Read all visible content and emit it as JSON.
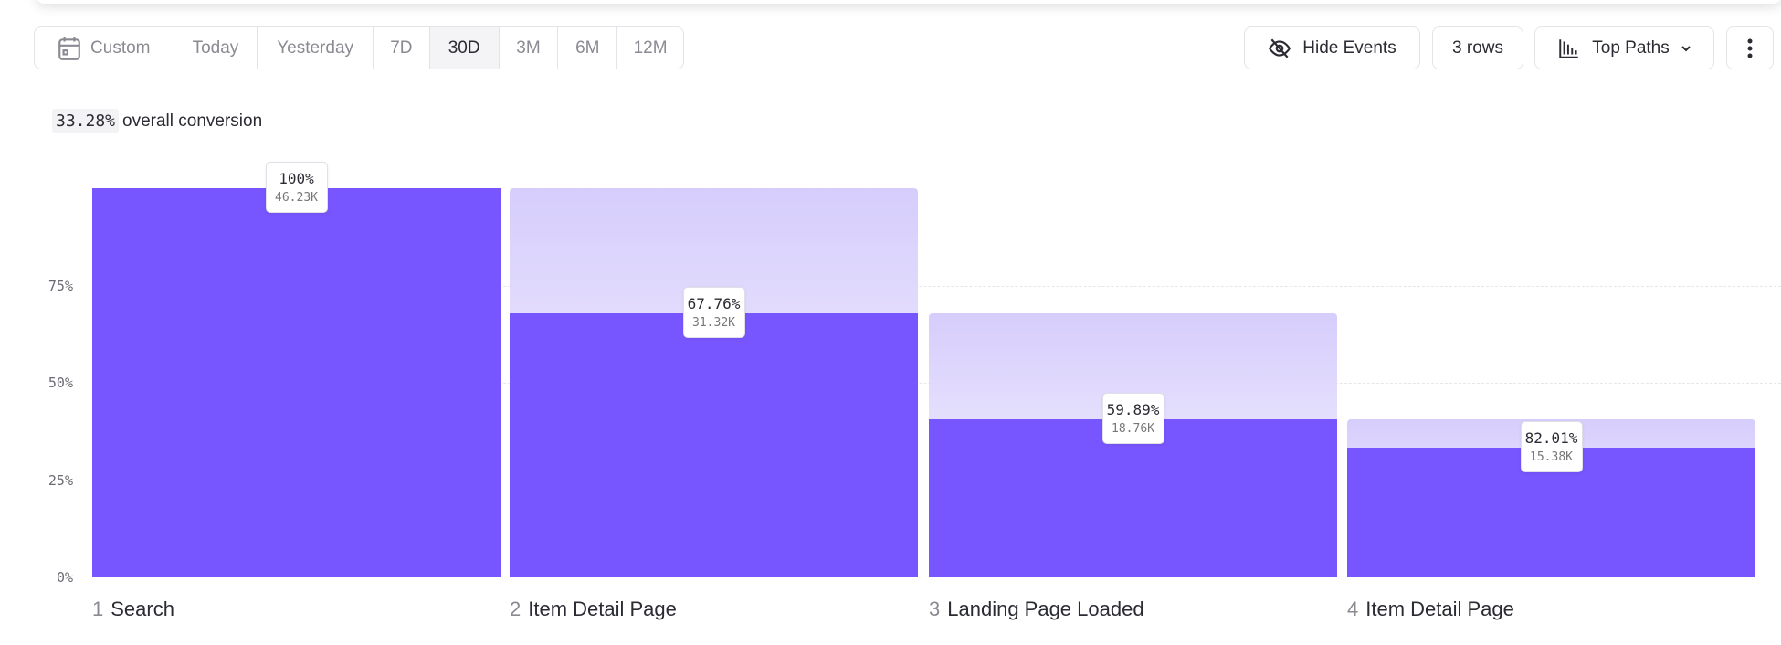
{
  "toolbar": {
    "date_ranges": [
      {
        "label": "Custom",
        "icon": "calendar-icon"
      },
      {
        "label": "Today"
      },
      {
        "label": "Yesterday"
      },
      {
        "label": "7D"
      },
      {
        "label": "30D",
        "active": true
      },
      {
        "label": "3M"
      },
      {
        "label": "6M"
      },
      {
        "label": "12M"
      }
    ],
    "hide_events": "Hide Events",
    "rows": "3 rows",
    "view": "Top Paths",
    "more_icon": "more-vertical-icon"
  },
  "summary": {
    "value": "33.28%",
    "label": "overall conversion"
  },
  "chart_data": {
    "type": "bar",
    "categories": [
      "Search",
      "Item Detail Page",
      "Landing Page Loaded",
      "Item Detail Page"
    ],
    "step_numbers": [
      "1",
      "2",
      "3",
      "4"
    ],
    "overall_percent": [
      100,
      67.76,
      40.58,
      33.28
    ],
    "step_conversion_labels": [
      "100%",
      "67.76%",
      "59.89%",
      "82.01%"
    ],
    "count_labels": [
      "46.23K",
      "31.32K",
      "18.76K",
      "15.38K"
    ],
    "y_ticks": [
      "0%",
      "25%",
      "50%",
      "75%"
    ],
    "ylim": [
      0,
      100
    ],
    "grid": true,
    "colors": {
      "bar": "#7856ff",
      "dropoff": "#d6cdfc"
    }
  }
}
